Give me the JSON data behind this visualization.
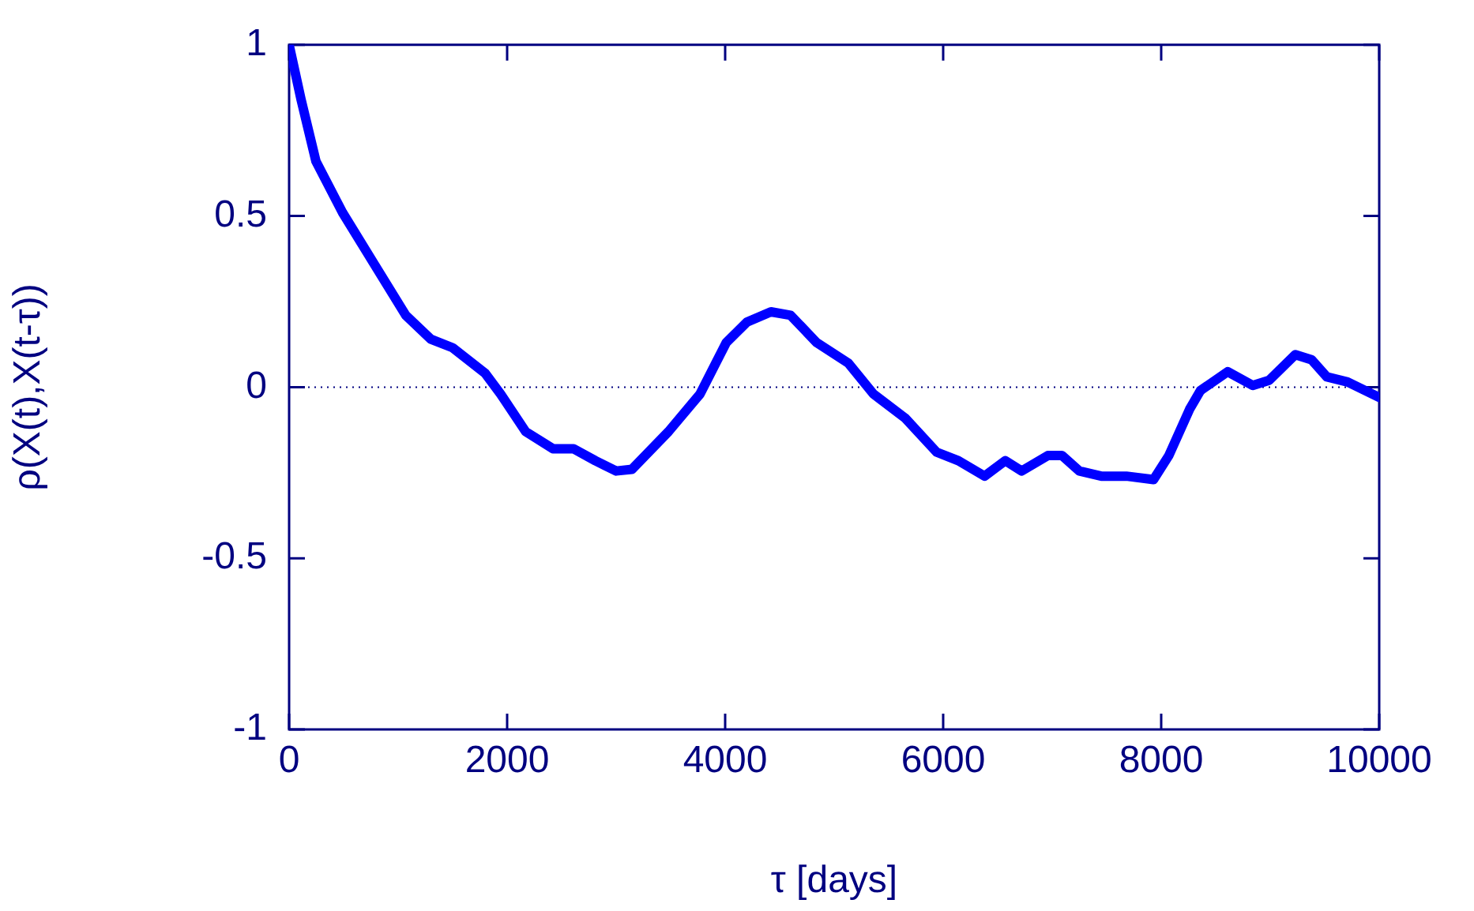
{
  "chart_data": {
    "type": "line",
    "xlabel": "τ [days]",
    "ylabel": "ρ(X(t),X(t-τ))",
    "x": [
      0,
      110,
      246,
      490,
      780,
      1070,
      1300,
      1500,
      1800,
      1940,
      2170,
      2420,
      2610,
      2810,
      3000,
      3145,
      3480,
      3770,
      4010,
      4200,
      4420,
      4600,
      4840,
      5130,
      5360,
      5650,
      5940,
      6140,
      6380,
      6570,
      6720,
      6960,
      7090,
      7250,
      7450,
      7680,
      7930,
      8070,
      8260,
      8360,
      8610,
      8840,
      8990,
      9230,
      9380,
      9520,
      9710,
      10000
    ],
    "series": [
      {
        "color": "#0000ff",
        "values": [
          1.0,
          0.84,
          0.66,
          0.51,
          0.36,
          0.21,
          0.14,
          0.115,
          0.04,
          -0.02,
          -0.13,
          -0.18,
          -0.18,
          -0.215,
          -0.245,
          -0.24,
          -0.13,
          -0.02,
          0.13,
          0.19,
          0.22,
          0.21,
          0.13,
          0.07,
          -0.02,
          -0.09,
          -0.19,
          -0.215,
          -0.26,
          -0.215,
          -0.245,
          -0.2,
          -0.2,
          -0.245,
          -0.26,
          -0.26,
          -0.27,
          -0.2,
          -0.065,
          -0.01,
          0.045,
          0.005,
          0.02,
          0.095,
          0.08,
          0.03,
          0.015,
          -0.03
        ]
      }
    ],
    "xlim": [
      0,
      10000
    ],
    "xticks": [
      0,
      2000,
      4000,
      6000,
      8000,
      10000
    ],
    "ylim": [
      -1,
      1
    ],
    "yticks": [
      -1,
      -0.5,
      0,
      0.5,
      1
    ],
    "grid": false,
    "legend": false,
    "marker": "none",
    "line_style": "solid",
    "ref_lines": [
      {
        "axis": "y",
        "value": 0,
        "color": "#000080",
        "line_style": "dotted"
      }
    ]
  }
}
